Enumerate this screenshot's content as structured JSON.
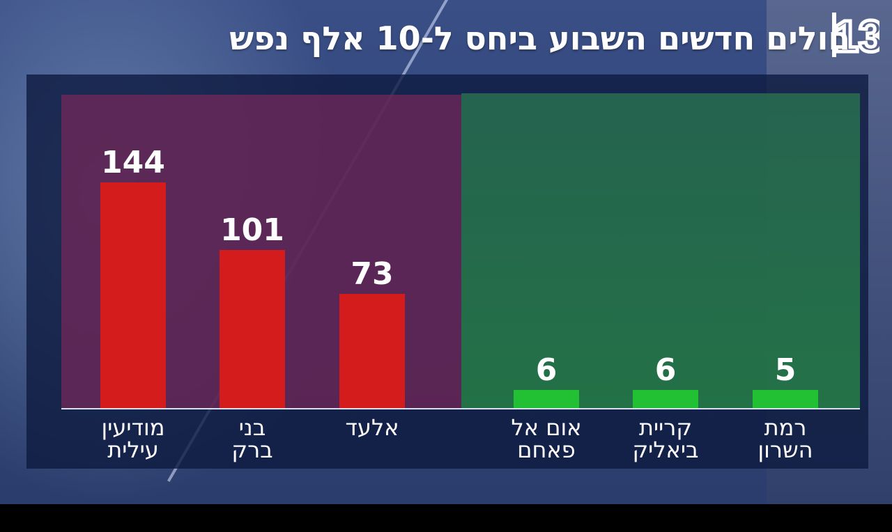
{
  "title": "חולים חדשים השבוע ביחס ל-10 אלף נפש",
  "logo": {
    "icon": "channel-13-logo",
    "text": "13"
  },
  "colors": {
    "high": "#d41c1c",
    "low": "#22c033",
    "background": "#2f4377"
  },
  "chart_data": {
    "type": "bar",
    "title": "חולים חדשים השבוע ביחס ל-10 אלף נפש",
    "categories": [
      [
        "מודיעין",
        "עילית"
      ],
      [
        "בני",
        "ברק"
      ],
      [
        "אלעד"
      ],
      [
        "אום אל",
        "פאחם"
      ],
      [
        "קריית",
        "ביאליק"
      ],
      [
        "רמת",
        "השרון"
      ]
    ],
    "values": [
      144,
      101,
      73,
      6,
      6,
      5
    ],
    "groups": [
      "high",
      "high",
      "high",
      "low",
      "low",
      "low"
    ],
    "xlabel": "",
    "ylabel": "",
    "ylim": [
      0,
      144
    ],
    "grid": false,
    "legend": "none"
  }
}
